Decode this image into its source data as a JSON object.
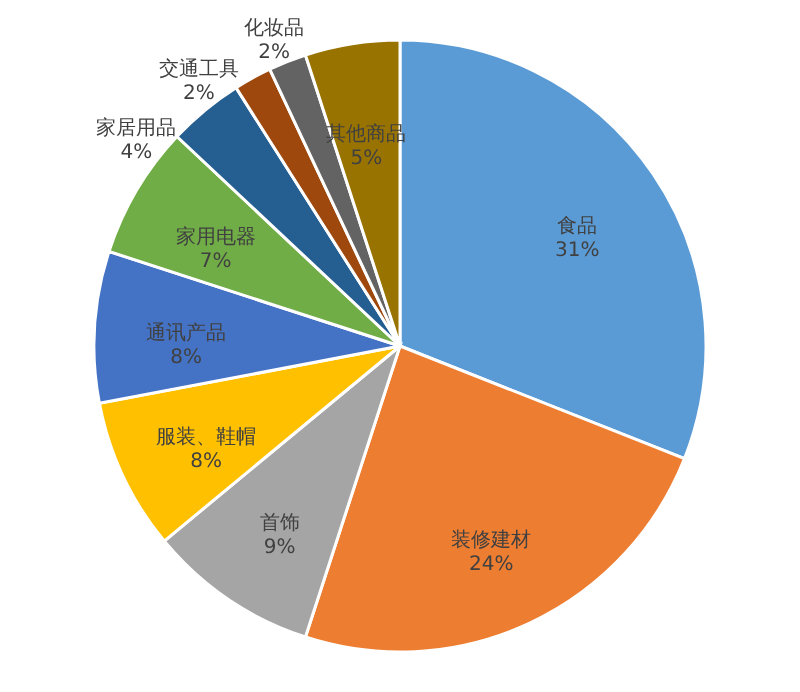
{
  "chart_data": {
    "type": "pie",
    "categories": [
      "食品",
      "装修建材",
      "首饰",
      "服装、鞋帽",
      "通讯产品",
      "家用电器",
      "家居用品",
      "交通工具",
      "化妆品",
      "其他商品"
    ],
    "values": [
      31,
      24,
      9,
      8,
      8,
      7,
      4,
      2,
      2,
      5
    ],
    "colors": [
      "#5b9bd5",
      "#ed7d31",
      "#a5a5a5",
      "#ffc000",
      "#4472c4",
      "#70ad47",
      "#255e91",
      "#9e480e",
      "#636363",
      "#997300"
    ],
    "value_labels": [
      "31%",
      "24%",
      "9%",
      "8%",
      "8%",
      "7%",
      "4%",
      "2%",
      "2%",
      "5%"
    ]
  }
}
